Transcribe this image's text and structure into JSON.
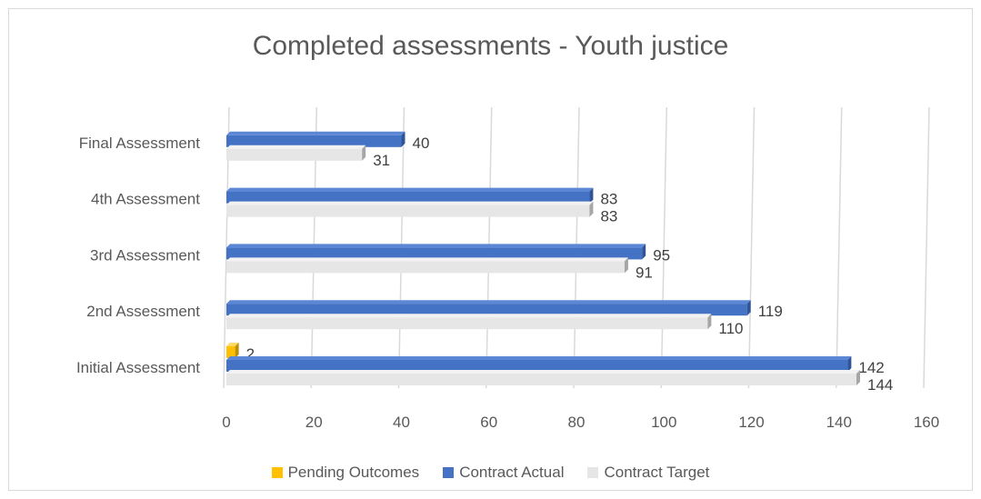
{
  "chart_data": {
    "type": "bar",
    "orientation": "horizontal",
    "title": "Completed assessments - Youth justice",
    "categories": [
      "Initial Assessment",
      "2nd Assessment",
      "3rd Assessment",
      "4th Assessment",
      "Final Assessment"
    ],
    "series": [
      {
        "name": "Pending Outcomes",
        "color": "#ffc000",
        "values": [
          2,
          null,
          null,
          null,
          null
        ]
      },
      {
        "name": "Contract Actual",
        "color": "#4472c4",
        "values": [
          142,
          119,
          95,
          83,
          40
        ]
      },
      {
        "name": "Contract Target",
        "color": "#e7e6e6",
        "values": [
          144,
          110,
          91,
          83,
          31
        ]
      }
    ],
    "xlim": [
      0,
      160
    ],
    "xticks": [
      0,
      20,
      40,
      60,
      80,
      100,
      120,
      140,
      160
    ],
    "grid": true,
    "legend_position": "bottom"
  }
}
